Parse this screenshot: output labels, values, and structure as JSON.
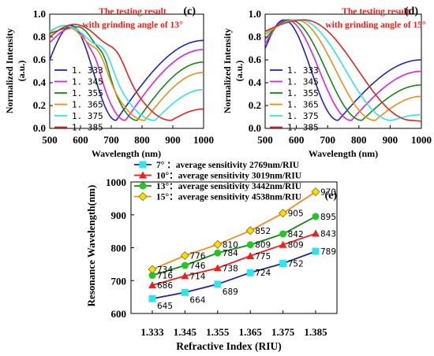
{
  "chart_data": [
    {
      "type": "line",
      "panel_label": "(c)",
      "annotation": [
        "The testing result",
        "with grinding angle of 13°"
      ],
      "xlabel": "Wavelength  (nm)",
      "ylabel": [
        "Normalized Intensity",
        "(a.u.)"
      ],
      "xlim": [
        500,
        1000
      ],
      "ylim": [
        0,
        1
      ],
      "xticks": [
        "500",
        "600",
        "700",
        "800",
        "900",
        "1000"
      ],
      "yticks": [
        "0.0",
        "0.2",
        "0.4",
        "0.6",
        "0.8",
        "1.0"
      ],
      "series": [
        {
          "name": "1. 333",
          "color": "#1f24c8",
          "dip": 716,
          "start": 0.6,
          "peakx": 570,
          "peakv": 0.9,
          "end": 0.77,
          "shoulder": 0
        },
        {
          "name": "1. 345",
          "color": "#e020e0",
          "dip": 746,
          "start": 0.75,
          "peakx": 575,
          "peakv": 0.88,
          "end": 0.69,
          "shoulder": 0.05
        },
        {
          "name": "1. 355",
          "color": "#138a13",
          "dip": 784,
          "start": 0.83,
          "peakx": 590,
          "peakv": 0.89,
          "end": 0.58,
          "shoulder": 0.08
        },
        {
          "name": "1. 365",
          "color": "#f08c1e",
          "dip": 809,
          "start": 0.84,
          "peakx": 545,
          "peakv": 0.9,
          "end": 0.49,
          "shoulder": 0.1
        },
        {
          "name": "1. 375",
          "color": "#2ee5e8",
          "dip": 842,
          "start": 0.85,
          "peakx": 550,
          "peakv": 0.9,
          "end": 0.34,
          "shoulder": 0.12
        },
        {
          "name": "1. 385",
          "color": "#e8231d",
          "dip": 895,
          "start": 0.8,
          "peakx": 580,
          "peakv": 0.91,
          "end": 0.17,
          "shoulder": 0.1
        }
      ]
    },
    {
      "type": "line",
      "panel_label": "(d)",
      "annotation": [
        "The testing result",
        "with grinding angle of 15°"
      ],
      "xlabel": "Wavelength  (nm)",
      "ylabel": [
        "Normalized Intensity",
        "(a.u.)"
      ],
      "xlim": [
        500,
        1000
      ],
      "ylim": [
        0,
        1
      ],
      "xticks": [
        "500",
        "600",
        "700",
        "800",
        "900",
        "1000"
      ],
      "yticks": [
        "0.0",
        "0.2",
        "0.4",
        "0.6",
        "0.8",
        "1.0"
      ],
      "series": [
        {
          "name": "1. 333",
          "color": "#1f24c8",
          "dip": 734,
          "start": 0.7,
          "peakx": 560,
          "peakv": 0.95,
          "end": 0.6,
          "shoulder": 0
        },
        {
          "name": "1. 345",
          "color": "#e020e0",
          "dip": 776,
          "start": 0.74,
          "peakx": 570,
          "peakv": 0.95,
          "end": 0.5,
          "shoulder": 0
        },
        {
          "name": "1. 355",
          "color": "#138a13",
          "dip": 810,
          "start": 0.78,
          "peakx": 580,
          "peakv": 0.95,
          "end": 0.38,
          "shoulder": 0
        },
        {
          "name": "1. 365",
          "color": "#f08c1e",
          "dip": 852,
          "start": 0.82,
          "peakx": 600,
          "peakv": 0.95,
          "end": 0.28,
          "shoulder": 0
        },
        {
          "name": "1. 375",
          "color": "#2ee5e8",
          "dip": 905,
          "start": 0.84,
          "peakx": 610,
          "peakv": 0.95,
          "end": 0.12,
          "shoulder": 0
        },
        {
          "name": "1. 385",
          "color": "#e8231d",
          "dip": 970,
          "start": 0.85,
          "peakx": 625,
          "peakv": 0.95,
          "end": 0.06,
          "shoulder": 0
        }
      ]
    },
    {
      "type": "line",
      "panel_label": "(e)",
      "xlabel": "Refractive Index  (RIU)",
      "ylabel": "Resonance Wavelength(nm)",
      "categories": [
        "1.333",
        "1.345",
        "1.355",
        "1.365",
        "1.375",
        "1.385"
      ],
      "ylim": [
        600,
        1000
      ],
      "yticks": [
        "600",
        "700",
        "800",
        "900",
        "1000"
      ],
      "series": [
        {
          "name": "7° ：average sensitivity 2769nm/RIU",
          "color": "#2ee5e8",
          "line": "#1f24a0",
          "marker": "square",
          "values": [
            645,
            664,
            689,
            724,
            752,
            789
          ]
        },
        {
          "name": "10°：average sensitivity 3019nm/RIU",
          "color": "#e8231d",
          "line": "#e8231d",
          "marker": "triangle",
          "values": [
            686,
            714,
            738,
            775,
            809,
            843
          ]
        },
        {
          "name": "13°：average sensitivity 3442nm/RIU",
          "color": "#22c822",
          "line": "#138a13",
          "marker": "circle",
          "values": [
            716,
            746,
            784,
            809,
            842,
            895
          ]
        },
        {
          "name": "15°：average sensitivity 4538nm/RIU",
          "color": "#f5e000",
          "line": "#f08c1e",
          "marker": "diamond",
          "values": [
            734,
            776,
            810,
            852,
            905,
            970
          ]
        }
      ]
    }
  ]
}
